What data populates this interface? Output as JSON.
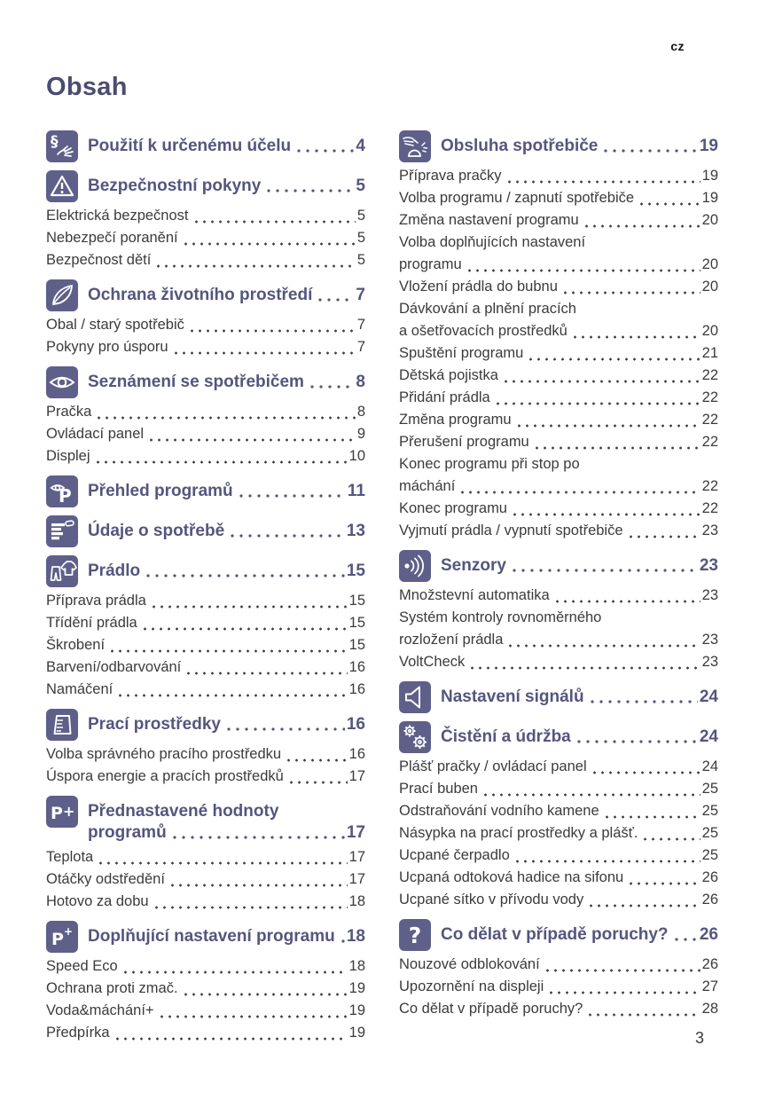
{
  "header": {
    "locale": "cz",
    "title": "Obsah"
  },
  "footer": {
    "page_number": "3"
  },
  "colors": {
    "icon_background": "#5e6089",
    "heading_text": "#54567e",
    "body_text": "#3b3b3b"
  },
  "columns": [
    {
      "sections": [
        {
          "icon": "paragraph-hand-icon",
          "title_lines": [
            "Použití k určenému účelu"
          ],
          "page": "4",
          "items": []
        },
        {
          "icon": "warning-icon",
          "title_lines": [
            "Bezpečnostní pokyny"
          ],
          "page": "5",
          "items": [
            {
              "lines": [
                "Elektrická bezpečnost"
              ],
              "page": "5"
            },
            {
              "lines": [
                "Nebezpečí poranění"
              ],
              "page": "5"
            },
            {
              "lines": [
                "Bezpečnost dětí"
              ],
              "page": "5"
            }
          ]
        },
        {
          "icon": "leaf-icon",
          "title_lines": [
            "Ochrana životního prostředí"
          ],
          "page": "7",
          "items": [
            {
              "lines": [
                "Obal / starý spotřebič"
              ],
              "page": "7"
            },
            {
              "lines": [
                "Pokyny pro úsporu"
              ],
              "page": "7"
            }
          ]
        },
        {
          "icon": "eye-icon",
          "title_lines": [
            "Seznámení se spotřebičem"
          ],
          "page": "8",
          "items": [
            {
              "lines": [
                "Pračka"
              ],
              "page": "8"
            },
            {
              "lines": [
                "Ovládací panel"
              ],
              "page": "9"
            },
            {
              "lines": [
                "Displej"
              ],
              "page": "10"
            }
          ]
        },
        {
          "icon": "eye-p-icon",
          "title_lines": [
            "Přehled programů"
          ],
          "page": "11",
          "items": []
        },
        {
          "icon": "consumption-data-icon",
          "title_lines": [
            "Údaje o spotřebě"
          ],
          "page": "13",
          "items": []
        },
        {
          "icon": "laundry-icon",
          "title_lines": [
            "Prádlo"
          ],
          "page": "15",
          "items": [
            {
              "lines": [
                "Příprava prádla"
              ],
              "page": "15"
            },
            {
              "lines": [
                "Třídění prádla"
              ],
              "page": "15"
            },
            {
              "lines": [
                "Škrobení"
              ],
              "page": "15"
            },
            {
              "lines": [
                "Barvení/odbarvování"
              ],
              "page": "16"
            },
            {
              "lines": [
                "Namáčení"
              ],
              "page": "16"
            }
          ]
        },
        {
          "icon": "detergent-cup-icon",
          "title_lines": [
            "Prací prostředky"
          ],
          "page": "16",
          "items": [
            {
              "lines": [
                "Volba správného pracího prostředku"
              ],
              "page": "16"
            },
            {
              "lines": [
                "Úspora energie a pracích prostředků"
              ],
              "page": "17"
            }
          ]
        },
        {
          "icon": "p-plus-icon",
          "title_lines": [
            "Přednastavené hodnoty",
            "programů"
          ],
          "page": "17",
          "items": [
            {
              "lines": [
                "Teplota"
              ],
              "page": "17"
            },
            {
              "lines": [
                "Otáčky odstředění"
              ],
              "page": "17"
            },
            {
              "lines": [
                "Hotovo za dobu"
              ],
              "page": "18"
            }
          ]
        },
        {
          "icon": "p-plus-super-icon",
          "title_lines": [
            "Doplňující nastavení programu"
          ],
          "page": "18",
          "items": [
            {
              "lines": [
                "Speed Eco"
              ],
              "page": "18"
            },
            {
              "lines": [
                "Ochrana proti zmač."
              ],
              "page": "19"
            },
            {
              "lines": [
                "Voda&máchání+"
              ],
              "page": "19"
            },
            {
              "lines": [
                "Předpírka"
              ],
              "page": "19"
            }
          ]
        }
      ]
    },
    {
      "sections": [
        {
          "icon": "hand-drum-icon",
          "title_lines": [
            "Obsluha spotřebiče"
          ],
          "page": "19",
          "items": [
            {
              "lines": [
                "Příprava pračky"
              ],
              "page": "19"
            },
            {
              "lines": [
                "Volba programu / zapnutí spotřebiče"
              ],
              "page": "19"
            },
            {
              "lines": [
                "Změna nastavení programu"
              ],
              "page": "20"
            },
            {
              "lines": [
                "Volba doplňujících nastavení",
                "programu"
              ],
              "page": "20"
            },
            {
              "lines": [
                "Vložení prádla do bubnu"
              ],
              "page": "20"
            },
            {
              "lines": [
                "Dávkování a plnění pracích",
                "a ošetřovacích prostředků"
              ],
              "page": "20"
            },
            {
              "lines": [
                "Spuštění programu"
              ],
              "page": "21"
            },
            {
              "lines": [
                "Dětská pojistka"
              ],
              "page": "22"
            },
            {
              "lines": [
                "Přidání prádla"
              ],
              "page": "22"
            },
            {
              "lines": [
                "Změna programu"
              ],
              "page": "22"
            },
            {
              "lines": [
                "Přerušení programu"
              ],
              "page": "22"
            },
            {
              "lines": [
                "Konec programu při stop po",
                "máchání"
              ],
              "page": "22"
            },
            {
              "lines": [
                "Konec programu"
              ],
              "page": "22"
            },
            {
              "lines": [
                "Vyjmutí prádla / vypnutí spotřebiče"
              ],
              "page": "23"
            }
          ]
        },
        {
          "icon": "sensor-waves-icon",
          "title_lines": [
            "Senzory"
          ],
          "page": "23",
          "items": [
            {
              "lines": [
                "Množstevní automatika"
              ],
              "page": "23"
            },
            {
              "lines": [
                "Systém kontroly rovnoměrného",
                "rozložení prádla"
              ],
              "page": "23"
            },
            {
              "lines": [
                "VoltCheck"
              ],
              "page": "23"
            }
          ]
        },
        {
          "icon": "speaker-icon",
          "title_lines": [
            "Nastavení signálů"
          ],
          "page": "24",
          "items": []
        },
        {
          "icon": "gears-icon",
          "title_lines": [
            "Čistění a údržba"
          ],
          "page": "24",
          "items": [
            {
              "lines": [
                "Plášť pračky / ovládací panel"
              ],
              "page": "24"
            },
            {
              "lines": [
                "Prací buben"
              ],
              "page": "25"
            },
            {
              "lines": [
                "Odstraňování vodního kamene"
              ],
              "page": "25"
            },
            {
              "lines": [
                "Násypka na prací prostředky a plášť."
              ],
              "page": "25"
            },
            {
              "lines": [
                "Ucpané čerpadlo"
              ],
              "page": "25"
            },
            {
              "lines": [
                "Ucpaná odtoková hadice na sifonu"
              ],
              "page": "26"
            },
            {
              "lines": [
                "Ucpané sítko v přívodu vody"
              ],
              "page": "26"
            }
          ]
        },
        {
          "icon": "question-icon",
          "title_lines": [
            "Co dělat v případě poruchy?"
          ],
          "page": "26",
          "items": [
            {
              "lines": [
                "Nouzové odblokování"
              ],
              "page": "26"
            },
            {
              "lines": [
                "Upozornění na displeji"
              ],
              "page": "27"
            },
            {
              "lines": [
                "Co dělat v případě poruchy?"
              ],
              "page": "28"
            }
          ]
        }
      ]
    }
  ]
}
